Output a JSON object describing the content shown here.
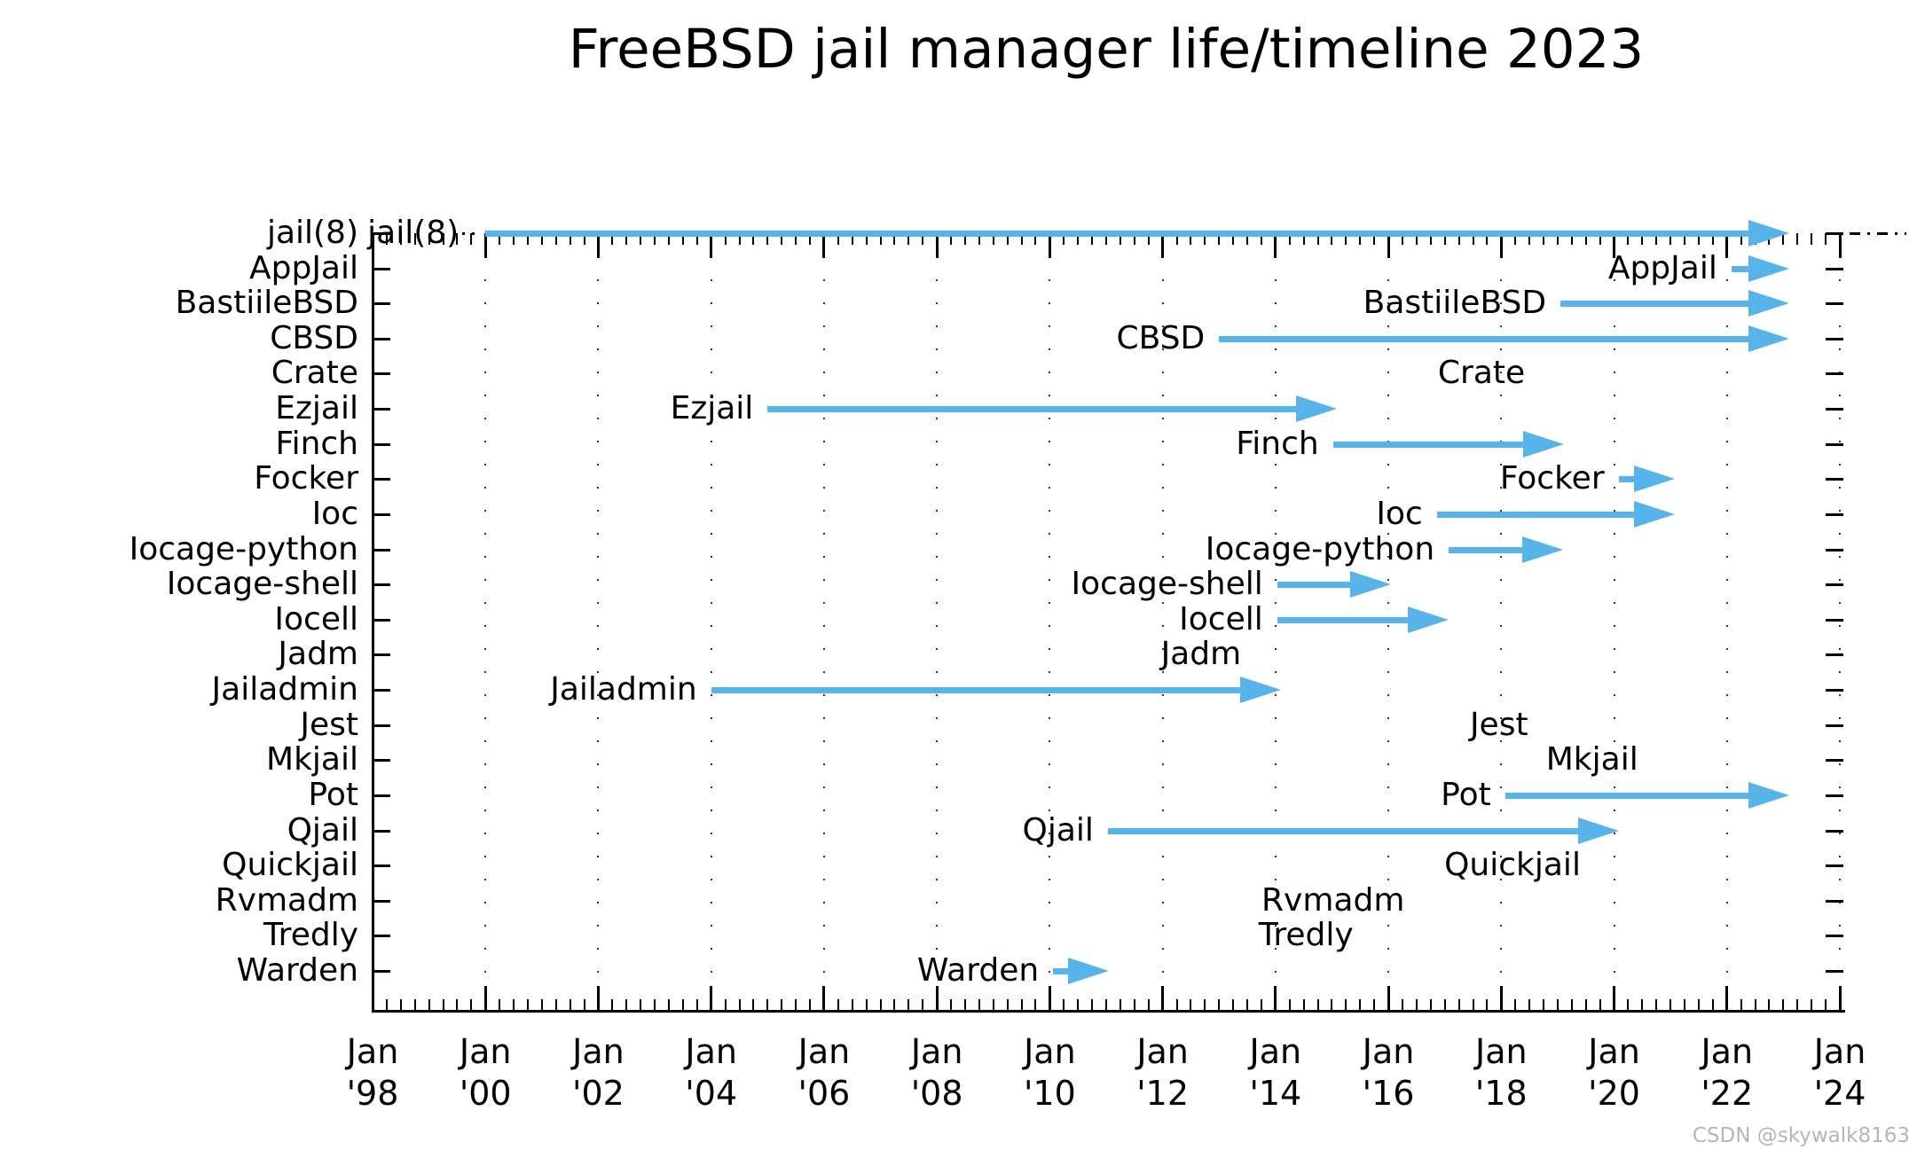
{
  "title": "FreeBSD jail manager life/timeline 2023",
  "watermark": "CSDN @skywalk8163",
  "colors": {
    "arrow": "#56B4E9",
    "axis": "#000000",
    "grid": "#333333",
    "watermark": "#b5b5b5",
    "background": "#ffffff"
  },
  "axis": {
    "x_min_year": 1998,
    "x_max_year": 2024,
    "x_major_step_years": 2,
    "x_minor_step_years": 0.25,
    "x_ticks": [
      {
        "month": "Jan",
        "year": "'98",
        "value": 1998
      },
      {
        "month": "Jan",
        "year": "'00",
        "value": 2000
      },
      {
        "month": "Jan",
        "year": "'02",
        "value": 2002
      },
      {
        "month": "Jan",
        "year": "'04",
        "value": 2004
      },
      {
        "month": "Jan",
        "year": "'06",
        "value": 2006
      },
      {
        "month": "Jan",
        "year": "'08",
        "value": 2008
      },
      {
        "month": "Jan",
        "year": "'10",
        "value": 2010
      },
      {
        "month": "Jan",
        "year": "'12",
        "value": 2012
      },
      {
        "month": "Jan",
        "year": "'14",
        "value": 2014
      },
      {
        "month": "Jan",
        "year": "'16",
        "value": 2016
      },
      {
        "month": "Jan",
        "year": "'18",
        "value": 2018
      },
      {
        "month": "Jan",
        "year": "'20",
        "value": 2020
      },
      {
        "month": "Jan",
        "year": "'22",
        "value": 2022
      },
      {
        "month": "Jan",
        "year": "'24",
        "value": 2024
      }
    ],
    "grid": "dotted-vertical-at-major-ticks",
    "ticks_direction": "in",
    "ticks_sides": [
      "top",
      "bottom",
      "left",
      "right"
    ]
  },
  "chart_data": {
    "type": "timeline",
    "title": "FreeBSD jail manager life/timeline 2023",
    "xlabel": "",
    "ylabel": "",
    "xlim": [
      1998,
      2024
    ],
    "now_year": 2023.1,
    "rows": [
      {
        "label": "jail(8)",
        "start": 2000.0,
        "end": 2023.1,
        "alive": true,
        "lead_dots": true,
        "tail_dash": true
      },
      {
        "label": "AppJail",
        "start": 2022.08,
        "end": 2023.1,
        "alive": true
      },
      {
        "label": "BastiileBSD",
        "start": 2019.05,
        "end": 2023.1,
        "alive": true
      },
      {
        "label": "CBSD",
        "start": 2013.0,
        "end": 2023.1,
        "alive": true
      },
      {
        "label": "Crate",
        "label_only": true,
        "label_center": 2017.65
      },
      {
        "label": "Ezjail",
        "start": 2005.0,
        "end": 2015.09
      },
      {
        "label": "Finch",
        "start": 2015.02,
        "end": 2019.11
      },
      {
        "label": "Focker",
        "start": 2020.08,
        "end": 2021.07
      },
      {
        "label": "Ioc",
        "start": 2016.86,
        "end": 2021.07
      },
      {
        "label": "Iocage-python",
        "start": 2017.07,
        "end": 2019.1
      },
      {
        "label": "Iocage-shell",
        "start": 2014.03,
        "end": 2016.05
      },
      {
        "label": "Iocell",
        "start": 2014.03,
        "end": 2017.07
      },
      {
        "label": "Jadm",
        "label_only": true,
        "label_center": 2012.68
      },
      {
        "label": "Jailadmin",
        "start": 2004.0,
        "end": 2014.1
      },
      {
        "label": "Jest",
        "label_only": true,
        "label_center": 2017.96
      },
      {
        "label": "Mkjail",
        "label_only": true,
        "label_center": 2019.61
      },
      {
        "label": "Pot",
        "start": 2018.07,
        "end": 2023.1,
        "alive": true
      },
      {
        "label": "Qjail",
        "start": 2011.03,
        "end": 2020.08
      },
      {
        "label": "Quickjail",
        "label_only": true,
        "label_center": 2018.2
      },
      {
        "label": "Rvmadm",
        "label_only": true,
        "label_center": 2015.02
      },
      {
        "label": "Tredly",
        "label_only": true,
        "label_center": 2014.54
      },
      {
        "label": "Warden",
        "start": 2010.06,
        "end": 2011.05
      }
    ]
  }
}
